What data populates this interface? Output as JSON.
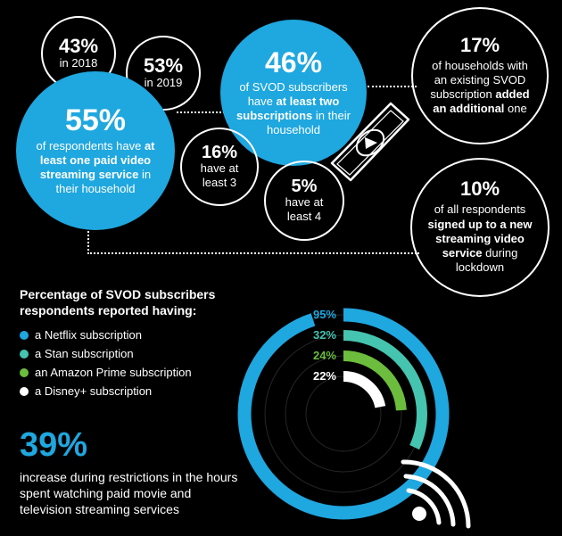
{
  "bubbles": {
    "b43": {
      "value": "43%",
      "label": "in 2018"
    },
    "b53": {
      "value": "53%",
      "label": "in 2019"
    },
    "b55": {
      "value": "55%",
      "pre": "of respondents have",
      "bold": "at least one paid video streaming service",
      "post": "in their household"
    },
    "b46": {
      "value": "46%",
      "pre": "of SVOD subscribers have",
      "bold": "at least two subscriptions",
      "post": "in their household"
    },
    "b16": {
      "value": "16%",
      "label": "have at least 3"
    },
    "b5": {
      "value": "5%",
      "label": "have at least 4"
    },
    "b17": {
      "value": "17%",
      "pre": "of households with an existing SVOD subscription",
      "bold": "added an additional",
      "post": "one"
    },
    "b10": {
      "value": "10%",
      "pre": "of all respondents",
      "bold": "signed up to a new streaming video service",
      "post": "during lockdown"
    }
  },
  "legend": {
    "title": "Percentage of SVOD subscribers respondents reported having:",
    "items": [
      {
        "label": "a Netflix subscription",
        "color": "#1fa7df"
      },
      {
        "label": "a Stan subscription",
        "color": "#45c4b0"
      },
      {
        "label": "an Amazon Prime subscription",
        "color": "#6cbd3d"
      },
      {
        "label": "a Disney+ subscription",
        "color": "#ffffff"
      }
    ]
  },
  "rings": [
    {
      "pct": 95,
      "label": "95%",
      "color": "#1fa7df"
    },
    {
      "pct": 32,
      "label": "32%",
      "color": "#45c4b0"
    },
    {
      "pct": 24,
      "label": "24%",
      "color": "#6cbd3d"
    },
    {
      "pct": 22,
      "label": "22%",
      "color": "#ffffff"
    }
  ],
  "stat": {
    "value": "39%",
    "text": "increase during restrictions in the hours spent watching paid movie and television streaming services"
  }
}
